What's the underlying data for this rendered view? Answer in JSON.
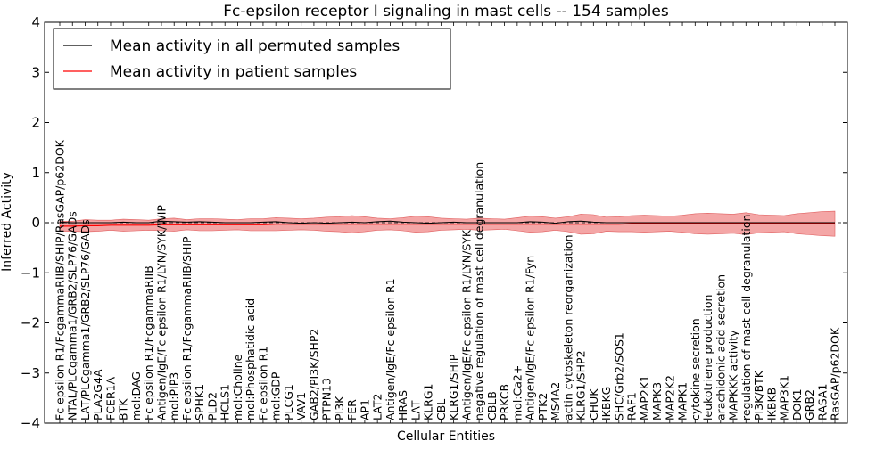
{
  "chart_data": {
    "type": "line",
    "title": "Fc-epsilon receptor I signaling in mast cells -- 154 samples",
    "xlabel": "Cellular Entities",
    "ylabel": "Inferred Activity",
    "ylim": [
      -4,
      4
    ],
    "yticks": [
      -4,
      -3,
      -2,
      -1,
      0,
      1,
      2,
      3,
      4
    ],
    "legend_position": "top-left",
    "series": [
      {
        "name": "Mean activity in all permuted samples",
        "color": "#000000"
      },
      {
        "name": "Mean activity in patient samples",
        "color": "#ff0000",
        "band_color": "#f08080"
      }
    ],
    "categories": [
      "Fc epsilon R1/FcgammaRIIB/SHIP/RasGAP/p62DOK",
      "NTAL/PLCgamma1/GRB2/SLP76/GADs",
      "LAT/PLCgamma1/GRB2/SLP76/GADs",
      "PLA2G4A",
      "FCER1A",
      "BTK",
      "mol:DAG",
      "Fc epsilon R1/FcgammaRIIB",
      "Antigen/IgE/Fc epsilon R1/LYN/SYK/WIP",
      "mol:PIP3",
      "Fc epsilon R1/FcgammaRIIB/SHIP",
      "SPHK1",
      "PLD2",
      "HCLS1",
      "mol:Choline",
      "mol:Phosphatidic acid",
      "Fc epsilon R1",
      "mol:GDP",
      "PLCG1",
      "VAV1",
      "GAB2/PI3K/SHP2",
      "PTPN13",
      "PI3K",
      "FER",
      "AP1",
      "LAT2",
      "Antigen/IgE/Fc epsilon R1",
      "HRAS",
      "LAT",
      "KLRG1",
      "CBL",
      "KLRG1/SHIP",
      "Antigen/IgE/Fc epsilon R1/LYN/SYK",
      "negative regulation of mast cell degranulation",
      "CBLB",
      "PRKCB",
      "mol:Ca2+",
      "Antigen/IgE/Fc epsilon R1/Fyn",
      "PTK2",
      "MS4A2",
      "actin cytoskeleton reorganization",
      "KLRG1/SHP2",
      "CHUK",
      "IKBKG",
      "SHC/Grb2/SOS1",
      "RAF1",
      "MAP2K1",
      "MAPK3",
      "MAP2K2",
      "MAPK1",
      "cytokine secretion",
      "leukotriene production",
      "arachidonic acid secretion",
      "MAPKKK activity",
      "regulation of mast cell degranulation",
      "PI3K/BTK",
      "IKBKB",
      "MAP3K1",
      "DOK1",
      "GRB2",
      "RASA1",
      "RasGAP/p62DOK"
    ],
    "patient_mean": [
      -0.07,
      -0.07,
      -0.06,
      -0.06,
      -0.05,
      -0.05,
      -0.05,
      -0.05,
      -0.04,
      -0.04,
      -0.04,
      -0.04,
      -0.04,
      -0.04,
      -0.04,
      -0.04,
      -0.04,
      -0.03,
      -0.03,
      -0.03,
      -0.03,
      -0.03,
      -0.03,
      -0.03,
      -0.03,
      -0.03,
      -0.03,
      -0.03,
      -0.03,
      -0.03,
      -0.03,
      -0.03,
      -0.03,
      -0.03,
      -0.03,
      -0.03,
      -0.03,
      -0.03,
      -0.03,
      -0.03,
      -0.03,
      -0.03,
      -0.03,
      -0.03,
      -0.03,
      -0.02,
      -0.02,
      -0.02,
      -0.02,
      -0.02,
      -0.02,
      -0.02,
      -0.02,
      -0.02,
      -0.02,
      -0.02,
      -0.02,
      -0.02,
      -0.02,
      -0.02,
      -0.02,
      -0.02
    ],
    "band_halfwidth": [
      0.1,
      0.1,
      0.12,
      0.11,
      0.1,
      0.12,
      0.11,
      0.1,
      0.12,
      0.13,
      0.1,
      0.12,
      0.12,
      0.11,
      0.1,
      0.12,
      0.12,
      0.13,
      0.12,
      0.11,
      0.12,
      0.14,
      0.15,
      0.17,
      0.15,
      0.12,
      0.11,
      0.13,
      0.16,
      0.15,
      0.12,
      0.11,
      0.1,
      0.12,
      0.11,
      0.1,
      0.13,
      0.16,
      0.15,
      0.12,
      0.15,
      0.2,
      0.19,
      0.14,
      0.15,
      0.16,
      0.17,
      0.16,
      0.15,
      0.17,
      0.2,
      0.21,
      0.2,
      0.19,
      0.22,
      0.18,
      0.17,
      0.16,
      0.2,
      0.22,
      0.24,
      0.25
    ],
    "permuted_mean": [
      0.01,
      0.0,
      0.0,
      0.0,
      0.0,
      0.01,
      0.0,
      0.0,
      0.03,
      0.02,
      0.01,
      0.02,
      0.01,
      0.0,
      0.0,
      0.0,
      0.01,
      0.02,
      0.0,
      -0.01,
      0.0,
      -0.01,
      0.0,
      0.01,
      0.0,
      0.02,
      0.03,
      0.01,
      0.0,
      -0.01,
      0.0,
      0.01,
      0.0,
      0.0,
      0.0,
      0.0,
      0.0,
      0.02,
      0.01,
      -0.01,
      0.02,
      0.03,
      0.01,
      0.0,
      0.0,
      0.0,
      0.0,
      0.0,
      0.0,
      0.0,
      0.0,
      0.0,
      0.0,
      0.0,
      0.0,
      0.0,
      0.0,
      0.0,
      0.0,
      0.0,
      0.0,
      0.0
    ]
  }
}
